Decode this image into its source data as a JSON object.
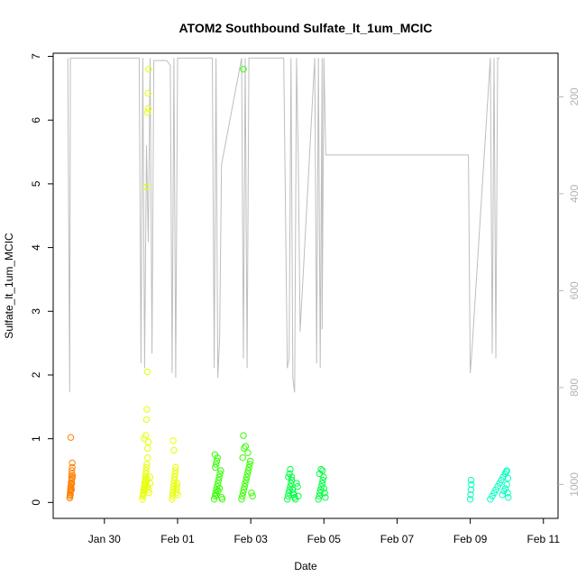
{
  "chart_data": {
    "type": "scatter",
    "title": "ATOM2 Southbound Sulfate_lt_1um_MCIC",
    "xlabel": "Date",
    "ylabel": "Sulfate_lt_1um_MCIC",
    "x_ticks": [
      "Jan 30",
      "Feb 01",
      "Feb 03",
      "Feb 05",
      "Feb 07",
      "Feb 09",
      "Feb 11"
    ],
    "y_ticks": [
      "0",
      "1",
      "2",
      "3",
      "4",
      "5",
      "6",
      "7"
    ],
    "y2_ticks": [
      "200",
      "400",
      "600",
      "800",
      "1000"
    ],
    "xlim_days": [
      28.6,
      42.4
    ],
    "ylim": [
      -0.25,
      7.05
    ],
    "y2lim_inverted": [
      1070,
      110
    ],
    "colors": {
      "orange": "#ff8000",
      "yellow": "#e6ff00",
      "green": "#33ff00",
      "bright_green": "#00ff40",
      "cyan": "#00ffbf",
      "pressure_line": "#bebebe",
      "axis_right": "#b3b3b3"
    },
    "series": [
      {
        "color": "#ff8000",
        "points": [
          [
            29.05,
            0.07
          ],
          [
            29.06,
            0.1
          ],
          [
            29.06,
            0.13
          ],
          [
            29.07,
            0.16
          ],
          [
            29.07,
            0.19
          ],
          [
            29.08,
            0.22
          ],
          [
            29.08,
            0.25
          ],
          [
            29.09,
            0.28
          ],
          [
            29.09,
            0.31
          ],
          [
            29.1,
            0.35
          ],
          [
            29.1,
            0.4
          ],
          [
            29.11,
            0.45
          ],
          [
            29.11,
            0.5
          ],
          [
            29.12,
            0.55
          ],
          [
            29.12,
            0.62
          ],
          [
            29.07,
            0.12
          ],
          [
            29.08,
            0.18
          ],
          [
            29.09,
            0.24
          ],
          [
            29.1,
            0.2
          ],
          [
            29.11,
            0.3
          ],
          [
            29.12,
            0.38
          ],
          [
            29.13,
            0.42
          ],
          [
            29.08,
            1.02
          ]
        ]
      },
      {
        "color": "#e6ff00",
        "points": [
          [
            31.05,
            0.1
          ],
          [
            31.07,
            0.15
          ],
          [
            31.08,
            0.2
          ],
          [
            31.09,
            0.25
          ],
          [
            31.1,
            0.3
          ],
          [
            31.11,
            0.35
          ],
          [
            31.12,
            0.4
          ],
          [
            31.13,
            0.45
          ],
          [
            31.14,
            0.5
          ],
          [
            31.15,
            0.55
          ],
          [
            31.16,
            0.6
          ],
          [
            31.18,
            0.7
          ],
          [
            31.06,
            0.12
          ],
          [
            31.08,
            0.18
          ],
          [
            31.1,
            0.22
          ],
          [
            31.12,
            0.28
          ],
          [
            31.14,
            0.33
          ],
          [
            31.16,
            0.38
          ],
          [
            31.18,
            0.25
          ],
          [
            31.2,
            0.2
          ],
          [
            31.22,
            0.15
          ],
          [
            31.04,
            0.05
          ],
          [
            31.09,
            1.0
          ],
          [
            31.13,
            1.05
          ],
          [
            31.15,
            1.3
          ],
          [
            31.16,
            1.46
          ],
          [
            31.18,
            0.85
          ],
          [
            31.2,
            0.95
          ],
          [
            31.17,
            2.05
          ],
          [
            31.15,
            4.95
          ],
          [
            31.18,
            6.12
          ],
          [
            31.2,
            6.18
          ],
          [
            31.19,
            6.42
          ],
          [
            31.21,
            6.8
          ],
          [
            31.25,
            0.4
          ],
          [
            31.25,
            0.3
          ],
          [
            31.85,
            0.05
          ],
          [
            31.86,
            0.1
          ],
          [
            31.87,
            0.15
          ],
          [
            31.88,
            0.2
          ],
          [
            31.89,
            0.25
          ],
          [
            31.9,
            0.3
          ],
          [
            31.91,
            0.35
          ],
          [
            31.92,
            0.4
          ],
          [
            31.93,
            0.45
          ],
          [
            31.94,
            0.5
          ],
          [
            31.95,
            0.55
          ],
          [
            31.96,
            0.15
          ],
          [
            31.97,
            0.2
          ],
          [
            31.98,
            0.25
          ],
          [
            31.99,
            0.3
          ],
          [
            32.0,
            0.12
          ],
          [
            31.9,
            0.82
          ],
          [
            31.88,
            0.97
          ]
        ]
      },
      {
        "color": "#33ff00",
        "points": [
          [
            33.0,
            0.05
          ],
          [
            33.02,
            0.1
          ],
          [
            33.04,
            0.15
          ],
          [
            33.06,
            0.2
          ],
          [
            33.08,
            0.25
          ],
          [
            33.1,
            0.3
          ],
          [
            33.12,
            0.35
          ],
          [
            33.14,
            0.4
          ],
          [
            33.16,
            0.45
          ],
          [
            33.18,
            0.5
          ],
          [
            33.03,
            0.55
          ],
          [
            33.05,
            0.6
          ],
          [
            33.07,
            0.65
          ],
          [
            33.09,
            0.7
          ],
          [
            33.02,
            0.75
          ],
          [
            33.06,
            0.12
          ],
          [
            33.11,
            0.18
          ],
          [
            33.15,
            0.22
          ],
          [
            33.2,
            0.08
          ],
          [
            33.22,
            0.05
          ],
          [
            33.75,
            0.05
          ],
          [
            33.77,
            0.1
          ],
          [
            33.79,
            0.15
          ],
          [
            33.81,
            0.2
          ],
          [
            33.83,
            0.25
          ],
          [
            33.85,
            0.3
          ],
          [
            33.87,
            0.35
          ],
          [
            33.89,
            0.4
          ],
          [
            33.91,
            0.45
          ],
          [
            33.93,
            0.5
          ],
          [
            33.95,
            0.55
          ],
          [
            33.97,
            0.6
          ],
          [
            33.99,
            0.65
          ],
          [
            33.78,
            0.7
          ],
          [
            33.82,
            0.85
          ],
          [
            33.86,
            0.88
          ],
          [
            33.92,
            0.78
          ],
          [
            33.8,
            1.05
          ],
          [
            34.02,
            0.15
          ],
          [
            34.05,
            0.1
          ],
          [
            33.8,
            6.8
          ]
        ]
      },
      {
        "color": "#00ff40",
        "points": [
          [
            35.0,
            0.05
          ],
          [
            35.02,
            0.1
          ],
          [
            35.04,
            0.15
          ],
          [
            35.06,
            0.2
          ],
          [
            35.08,
            0.25
          ],
          [
            35.1,
            0.3
          ],
          [
            35.12,
            0.35
          ],
          [
            35.14,
            0.2
          ],
          [
            35.16,
            0.15
          ],
          [
            35.18,
            0.12
          ],
          [
            35.2,
            0.08
          ],
          [
            35.22,
            0.05
          ],
          [
            35.03,
            0.4
          ],
          [
            35.06,
            0.45
          ],
          [
            35.08,
            0.52
          ],
          [
            35.12,
            0.4
          ],
          [
            35.25,
            0.3
          ],
          [
            35.28,
            0.25
          ],
          [
            35.3,
            0.1
          ],
          [
            35.85,
            0.05
          ],
          [
            35.87,
            0.1
          ],
          [
            35.89,
            0.15
          ],
          [
            35.91,
            0.2
          ],
          [
            35.93,
            0.25
          ],
          [
            35.95,
            0.3
          ],
          [
            35.97,
            0.35
          ],
          [
            35.99,
            0.4
          ],
          [
            35.88,
            0.45
          ],
          [
            35.92,
            0.52
          ],
          [
            35.96,
            0.5
          ],
          [
            36.0,
            0.22
          ],
          [
            36.02,
            0.15
          ],
          [
            36.04,
            0.08
          ]
        ]
      },
      {
        "color": "#00ffbf",
        "points": [
          [
            40.0,
            0.05
          ],
          [
            40.01,
            0.12
          ],
          [
            40.02,
            0.2
          ],
          [
            40.03,
            0.28
          ],
          [
            40.02,
            0.35
          ],
          [
            40.55,
            0.05
          ],
          [
            40.6,
            0.1
          ],
          [
            40.65,
            0.15
          ],
          [
            40.7,
            0.2
          ],
          [
            40.75,
            0.25
          ],
          [
            40.8,
            0.3
          ],
          [
            40.85,
            0.35
          ],
          [
            40.9,
            0.4
          ],
          [
            40.95,
            0.45
          ],
          [
            41.0,
            0.5
          ],
          [
            40.88,
            0.12
          ],
          [
            40.92,
            0.18
          ],
          [
            40.96,
            0.22
          ],
          [
            41.0,
            0.28
          ],
          [
            41.02,
            0.15
          ],
          [
            41.04,
            0.08
          ],
          [
            41.03,
            0.38
          ],
          [
            40.98,
            0.48
          ]
        ]
      }
    ],
    "pressure_line": {
      "name": "",
      "points": [
        [
          29.0,
          120
        ],
        [
          29.05,
          810
        ],
        [
          29.07,
          120
        ],
        [
          30.95,
          120
        ],
        [
          31.0,
          750
        ],
        [
          31.05,
          120
        ],
        [
          31.1,
          760
        ],
        [
          31.15,
          300
        ],
        [
          31.2,
          500
        ],
        [
          31.25,
          120
        ],
        [
          31.3,
          730
        ],
        [
          31.35,
          125
        ],
        [
          31.7,
          125
        ],
        [
          31.8,
          135
        ],
        [
          31.85,
          770
        ],
        [
          31.9,
          120
        ],
        [
          31.95,
          780
        ],
        [
          32.0,
          120
        ],
        [
          32.95,
          120
        ],
        [
          33.0,
          760
        ],
        [
          33.05,
          120
        ],
        [
          33.1,
          780
        ],
        [
          33.15,
          700
        ],
        [
          33.2,
          340
        ],
        [
          33.75,
          120
        ],
        [
          33.8,
          740
        ],
        [
          33.85,
          120
        ],
        [
          33.9,
          760
        ],
        [
          33.95,
          120
        ],
        [
          34.9,
          120
        ],
        [
          35.0,
          760
        ],
        [
          35.05,
          740
        ],
        [
          35.1,
          120
        ],
        [
          35.15,
          780
        ],
        [
          35.2,
          810
        ],
        [
          35.25,
          120
        ],
        [
          35.3,
          330
        ],
        [
          35.35,
          685
        ],
        [
          35.75,
          120
        ],
        [
          35.8,
          750
        ],
        [
          35.85,
          120
        ],
        [
          35.9,
          760
        ],
        [
          35.95,
          120
        ],
        [
          35.95,
          680
        ],
        [
          36.0,
          120
        ],
        [
          36.05,
          320
        ],
        [
          39.95,
          320
        ],
        [
          40.0,
          770
        ],
        [
          40.05,
          720
        ],
        [
          40.55,
          120
        ],
        [
          40.6,
          730
        ],
        [
          40.65,
          120
        ],
        [
          40.7,
          740
        ],
        [
          40.75,
          120
        ],
        [
          40.8,
          120
        ]
      ]
    }
  }
}
